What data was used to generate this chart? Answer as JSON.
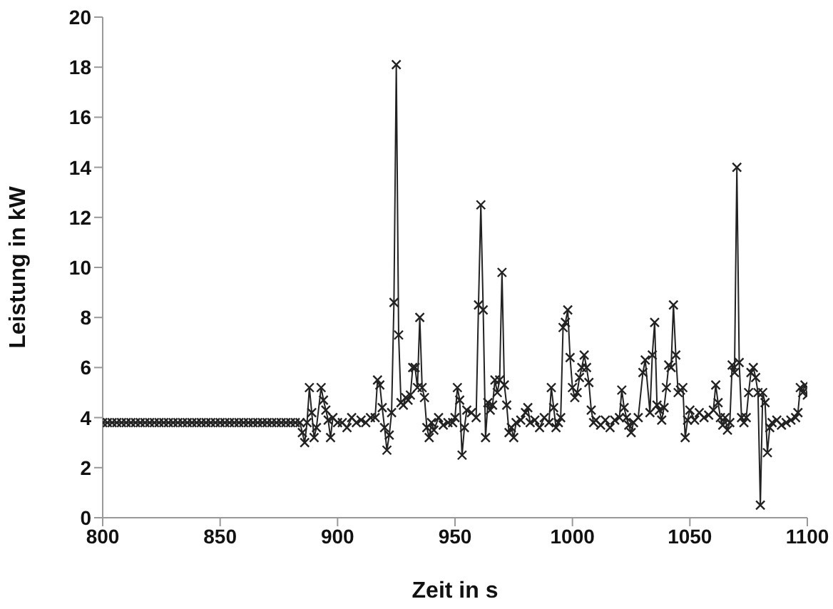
{
  "chart_data": {
    "type": "line",
    "xlabel": "Zeit in s",
    "ylabel": "Leistung in kW",
    "xlim": [
      800,
      1100
    ],
    "xticks": [
      800,
      850,
      900,
      950,
      1000,
      1050,
      1100
    ],
    "ylim": [
      0,
      20
    ],
    "yticks": [
      0,
      2,
      4,
      6,
      8,
      10,
      12,
      14,
      16,
      18,
      20
    ],
    "grid": false,
    "legend": false,
    "marker": "cross",
    "line_style": "solid",
    "series": [
      {
        "color": "#222222",
        "x": [
          800,
          802,
          804,
          806,
          808,
          810,
          812,
          814,
          816,
          818,
          820,
          822,
          824,
          826,
          828,
          830,
          832,
          834,
          836,
          838,
          840,
          842,
          844,
          846,
          848,
          850,
          852,
          854,
          856,
          858,
          860,
          862,
          864,
          866,
          868,
          870,
          872,
          874,
          876,
          878,
          880,
          882,
          884,
          885,
          886,
          887,
          888,
          889,
          890,
          891,
          893,
          894,
          895,
          896,
          897,
          898,
          900,
          902,
          904,
          906,
          908,
          910,
          912,
          914,
          916,
          917,
          918,
          919,
          920,
          921,
          922,
          923,
          924,
          925,
          926,
          927,
          928,
          929,
          930,
          931,
          932,
          933,
          934,
          935,
          936,
          937,
          938,
          939,
          940,
          941,
          943,
          945,
          947,
          949,
          950,
          951,
          952,
          953,
          954,
          955,
          957,
          959,
          960,
          961,
          962,
          963,
          964,
          965,
          966,
          967,
          968,
          969,
          970,
          971,
          972,
          973,
          974,
          975,
          976,
          978,
          980,
          981,
          982,
          984,
          986,
          988,
          990,
          991,
          992,
          993,
          994,
          995,
          996,
          997,
          998,
          999,
          1000,
          1001,
          1002,
          1003,
          1004,
          1005,
          1006,
          1007,
          1008,
          1009,
          1010,
          1012,
          1014,
          1016,
          1018,
          1020,
          1021,
          1022,
          1023,
          1024,
          1025,
          1026,
          1028,
          1030,
          1031,
          1033,
          1034,
          1035,
          1036,
          1037,
          1038,
          1039,
          1040,
          1041,
          1042,
          1043,
          1044,
          1045,
          1046,
          1047,
          1048,
          1049,
          1050,
          1052,
          1054,
          1056,
          1058,
          1060,
          1061,
          1062,
          1063,
          1064,
          1065,
          1066,
          1067,
          1068,
          1069,
          1070,
          1071,
          1072,
          1073,
          1074,
          1075,
          1076,
          1077,
          1078,
          1079,
          1080,
          1081,
          1082,
          1083,
          1084,
          1085,
          1087,
          1089,
          1091,
          1093,
          1095,
          1096,
          1097,
          1098,
          1099,
          1100
        ],
        "values": [
          3.8,
          3.8,
          3.8,
          3.8,
          3.8,
          3.8,
          3.8,
          3.8,
          3.8,
          3.8,
          3.8,
          3.8,
          3.8,
          3.8,
          3.8,
          3.8,
          3.8,
          3.8,
          3.8,
          3.8,
          3.8,
          3.8,
          3.8,
          3.8,
          3.8,
          3.8,
          3.8,
          3.8,
          3.8,
          3.8,
          3.8,
          3.8,
          3.8,
          3.8,
          3.8,
          3.8,
          3.8,
          3.8,
          3.8,
          3.8,
          3.8,
          3.8,
          3.8,
          3.4,
          3.0,
          3.8,
          5.2,
          4.2,
          3.2,
          3.6,
          5.2,
          4.7,
          4.3,
          3.9,
          3.2,
          4.0,
          3.8,
          3.8,
          3.6,
          4.0,
          3.8,
          3.9,
          3.8,
          4.0,
          4.0,
          5.5,
          5.3,
          4.4,
          3.6,
          2.7,
          3.3,
          4.2,
          8.6,
          18.1,
          7.3,
          4.6,
          4.5,
          4.8,
          4.7,
          4.9,
          6.0,
          6.0,
          5.2,
          8.0,
          5.2,
          4.8,
          3.6,
          3.2,
          3.8,
          3.5,
          4.0,
          3.7,
          3.8,
          3.8,
          4.0,
          5.2,
          4.7,
          2.5,
          3.6,
          4.3,
          4.2,
          4.0,
          8.5,
          12.5,
          8.3,
          3.2,
          4.6,
          4.3,
          4.5,
          5.5,
          5.0,
          5.5,
          9.8,
          5.3,
          4.5,
          3.4,
          3.6,
          3.2,
          3.8,
          3.9,
          4.2,
          4.4,
          3.8,
          3.9,
          3.6,
          4.0,
          3.8,
          5.2,
          4.4,
          3.6,
          3.8,
          4.0,
          7.6,
          7.8,
          8.3,
          6.4,
          5.2,
          4.8,
          5.0,
          5.6,
          6.0,
          6.5,
          6.0,
          5.4,
          4.3,
          3.8,
          3.9,
          3.7,
          3.9,
          3.6,
          3.9,
          4.0,
          5.1,
          4.4,
          4.0,
          3.7,
          3.4,
          3.8,
          4.0,
          5.8,
          6.3,
          4.2,
          6.5,
          7.8,
          4.5,
          4.3,
          3.9,
          4.4,
          5.2,
          6.1,
          6.0,
          8.5,
          6.5,
          5.0,
          5.1,
          5.2,
          3.2,
          3.9,
          4.3,
          3.9,
          4.2,
          4.0,
          4.1,
          4.3,
          5.3,
          4.6,
          4.0,
          3.7,
          4.0,
          3.5,
          3.8,
          6.1,
          5.8,
          14.0,
          6.2,
          4.0,
          3.8,
          4.0,
          5.0,
          5.8,
          6.0,
          5.6,
          5.0,
          0.5,
          5.0,
          4.6,
          2.6,
          3.6,
          3.8,
          3.9,
          3.7,
          3.8,
          3.9,
          4.0,
          4.2,
          5.2,
          5.0,
          5.3,
          4.9
        ]
      }
    ]
  }
}
